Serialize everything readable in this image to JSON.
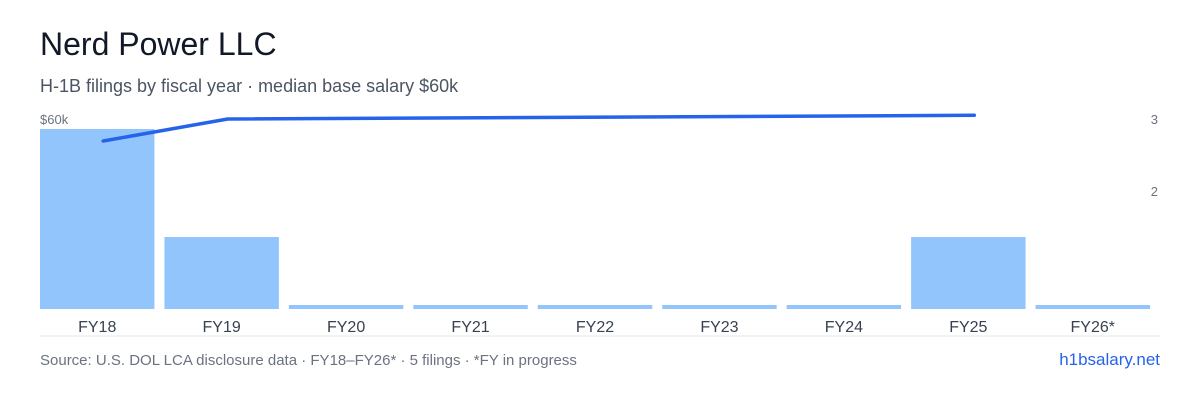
{
  "title": "Nerd Power LLC",
  "subtitle": "H-1B filings by fiscal year · median base salary $60k",
  "footer": {
    "source": "Source: U.S. DOL LCA disclosure data · FY18–FY26* · 5 filings · *FY in progress",
    "brand": "h1bsalary.net"
  },
  "colors": {
    "bar": "#93c5fd",
    "line": "#2563eb",
    "axis": "#e5e7eb"
  },
  "chart_data": {
    "type": "bar",
    "categories": [
      "FY18",
      "FY19",
      "FY20",
      "FY21",
      "FY22",
      "FY23",
      "FY24",
      "FY25",
      "FY26*"
    ],
    "series": [
      {
        "type": "bar",
        "axis": "right",
        "values": [
          2.5,
          1,
          0,
          0,
          0,
          0,
          0,
          1,
          0
        ]
      },
      {
        "type": "line",
        "axis": "left",
        "values": [
          57000,
          60000,
          null,
          null,
          null,
          null,
          null,
          60500,
          null
        ]
      }
    ],
    "left_axis": {
      "tick_labels": [
        "$60k"
      ],
      "tick_values": [
        60000
      ]
    },
    "right_axis": {
      "tick_labels": [
        "3",
        "2"
      ],
      "tick_values": [
        3,
        2
      ],
      "range": [
        0,
        3
      ]
    },
    "grid": false
  }
}
